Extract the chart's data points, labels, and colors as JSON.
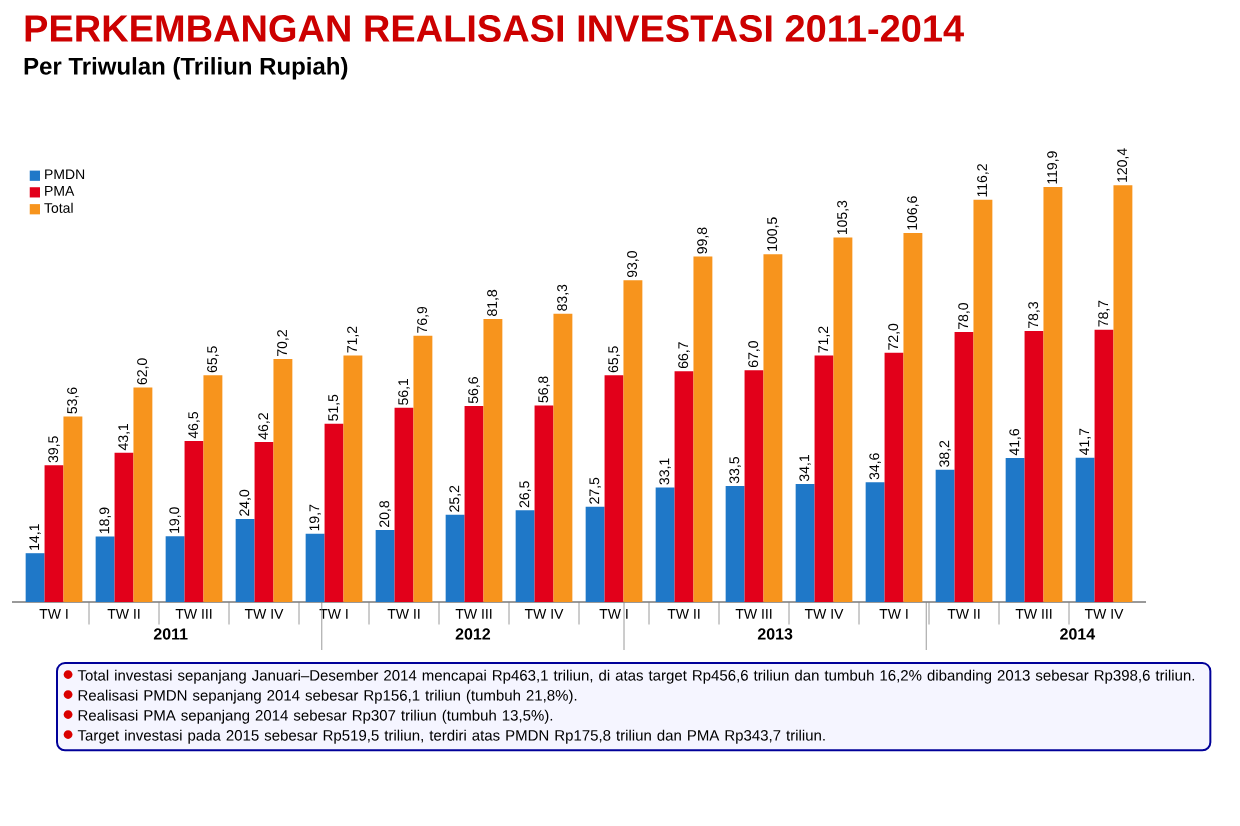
{
  "chart_data": {
    "type": "bar",
    "title": "PERKEMBANGAN REALISASI INVESTASI 2011-2014",
    "subtitle": "Per Triwulan (Triliun Rupiah)",
    "categories": [
      "TW I",
      "TW II",
      "TW III",
      "TW IV",
      "TW I",
      "TW II",
      "TW III",
      "TW IV",
      "TW I",
      "TW II",
      "TW III",
      "TW IV",
      "TW I",
      "TW II",
      "TW III",
      "TW IV"
    ],
    "series": [
      {
        "name": "PMDN",
        "color": "#1f78c8",
        "values": [
          14.1,
          18.9,
          19.0,
          24.0,
          19.7,
          20.8,
          25.2,
          26.5,
          27.5,
          33.1,
          33.5,
          34.1,
          34.6,
          38.2,
          41.6,
          41.7
        ],
        "value_labels": [
          "14,1",
          "18,9",
          "19,0",
          "24,0",
          "19,7",
          "20,8",
          "25,2",
          "26,5",
          "27,5",
          "33,1",
          "33,5",
          "34,1",
          "34,6",
          "38,2",
          "41,6",
          "41,7"
        ]
      },
      {
        "name": "PMA",
        "color": "#e2001a",
        "values": [
          39.5,
          43.1,
          46.5,
          46.2,
          51.5,
          56.1,
          56.6,
          56.8,
          65.5,
          66.7,
          67.0,
          71.2,
          72.0,
          78.0,
          78.3,
          78.7
        ],
        "value_labels": [
          "39,5",
          "43,1",
          "46,5",
          "46,2",
          "51,5",
          "56,1",
          "56,6",
          "56,8",
          "65,5",
          "66,7",
          "67,0",
          "71,2",
          "72,0",
          "78,0",
          "78,3",
          "78,7"
        ]
      },
      {
        "name": "Total",
        "color": "#f7941d",
        "values": [
          53.6,
          62.0,
          65.5,
          70.2,
          71.2,
          76.9,
          81.8,
          83.3,
          93.0,
          99.8,
          100.5,
          105.3,
          106.6,
          116.2,
          119.9,
          120.4
        ],
        "value_labels": [
          "53,6",
          "62,0",
          "65,5",
          "70,2",
          "71,2",
          "76,9",
          "81,8",
          "83,3",
          "93,0",
          "99,8",
          "100,5",
          "105,3",
          "106,6",
          "116,2",
          "119,9",
          "120,4"
        ]
      }
    ],
    "annotations": [
      "2011",
      "2012",
      "2013",
      "2014",
      "Total investasi sepanjang Januari–Desember 2014 mencapai Rp463,1 triliun, di atas target Rp456,6 triliun dan tumbuh 16,2% dibanding 2013 sebesar Rp398,6 triliun.",
      "Realisasi PMDN sepanjang 2014 sebesar Rp156,1 triliun (tumbuh 21,8%).",
      "Realisasi PMA sepanjang 2014 sebesar Rp307 triliun (tumbuh 13,5%).",
      "Target investasi pada 2015 sebesar Rp519,5 triliun, terdiri atas PMDN Rp175,8 triliun dan PMA Rp343,7 triliun."
    ],
    "legend": "top left"
  }
}
